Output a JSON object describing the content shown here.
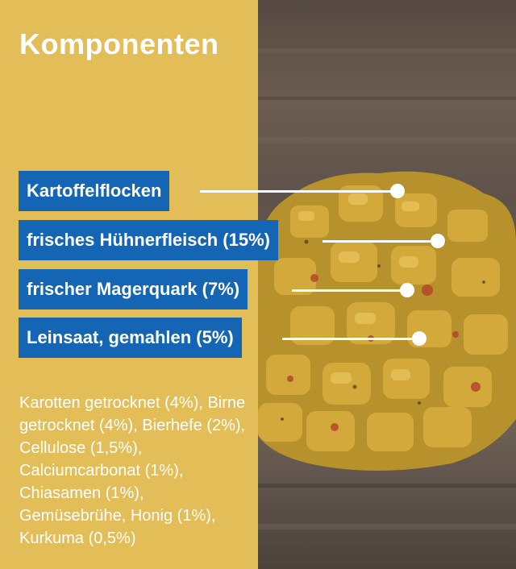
{
  "heading": "Komponenten",
  "main_components": [
    {
      "label": "Kartoffelflocken"
    },
    {
      "label": "frisches Hühnerfleisch (15%)"
    },
    {
      "label": "frischer Magerquark (7%)"
    },
    {
      "label": "Leinsaat, gemahlen (5%)"
    }
  ],
  "other_components": "Karotten getrocknet (4%), Birne getrocknet (4%), Bierhefe (2%), Cellulose (1,5%), Calciumcarbonat (1%), Chiasamen (1%), Gemüsebrühe, Honig (1%), Kurkuma (0,5%)",
  "colors": {
    "panel": "#e2bd58",
    "label_bg": "#1565b5",
    "text": "#ffffff"
  },
  "photo": {
    "subject": "dog-food-pellets-image"
  }
}
